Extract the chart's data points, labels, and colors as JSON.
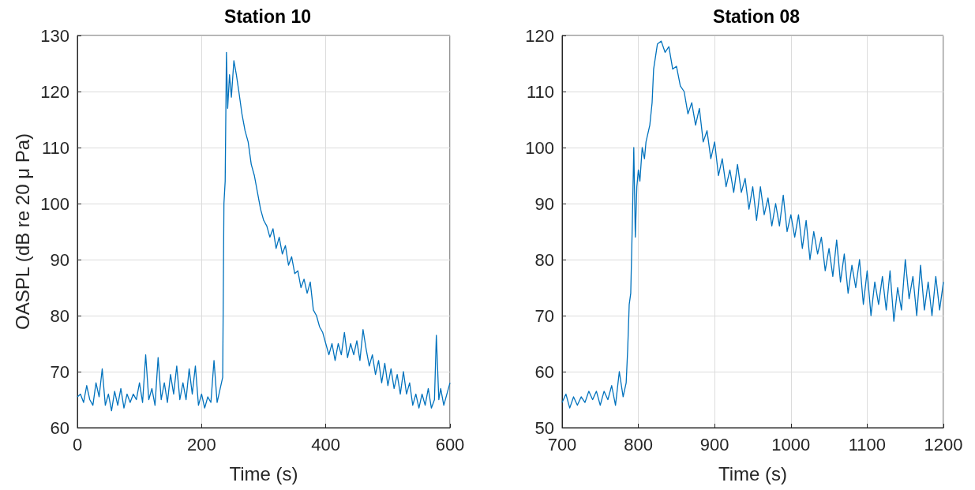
{
  "chart_data": [
    {
      "type": "line",
      "title": "Station 10",
      "xlabel": "Time (s)",
      "ylabel": "OASPL (dB re 20 μ Pa)",
      "xlim": [
        0,
        600
      ],
      "xticks": [
        0,
        200,
        400,
        600
      ],
      "ylim": [
        60,
        130
      ],
      "yticks": [
        60,
        70,
        80,
        90,
        100,
        110,
        120,
        130
      ],
      "grid": true,
      "series": [
        {
          "color": "#0072bd",
          "x": [
            0,
            5,
            10,
            15,
            20,
            25,
            30,
            35,
            40,
            45,
            50,
            55,
            60,
            65,
            70,
            75,
            80,
            85,
            90,
            95,
            100,
            105,
            110,
            115,
            120,
            125,
            130,
            135,
            140,
            145,
            150,
            155,
            160,
            165,
            170,
            175,
            180,
            185,
            190,
            195,
            200,
            205,
            210,
            215,
            220,
            225,
            230,
            234,
            236,
            238,
            240,
            242,
            245,
            248,
            252,
            256,
            260,
            265,
            270,
            275,
            280,
            285,
            290,
            295,
            300,
            305,
            310,
            315,
            320,
            325,
            330,
            335,
            340,
            345,
            350,
            355,
            360,
            365,
            370,
            375,
            380,
            385,
            390,
            395,
            400,
            405,
            410,
            415,
            420,
            425,
            430,
            435,
            440,
            445,
            450,
            455,
            460,
            465,
            470,
            475,
            480,
            485,
            490,
            495,
            500,
            505,
            510,
            515,
            520,
            525,
            530,
            535,
            540,
            545,
            550,
            555,
            560,
            565,
            570,
            575,
            578,
            582,
            585,
            590,
            595,
            600
          ],
          "values": [
            65.5,
            66,
            64.5,
            67.5,
            65,
            64,
            68,
            65.5,
            70.5,
            64,
            66,
            63,
            66.5,
            64,
            67,
            63.5,
            66,
            64.5,
            66,
            65,
            68,
            64.5,
            73,
            65,
            67,
            64,
            72.5,
            65,
            68,
            64.5,
            69.5,
            66,
            71,
            65,
            68,
            65,
            70.5,
            66,
            71,
            64,
            66,
            63.5,
            65.5,
            64.5,
            72,
            64.5,
            67,
            69,
            100,
            104,
            127,
            117,
            123,
            119,
            125.5,
            123,
            120,
            116,
            113,
            111,
            107,
            105,
            102,
            99,
            97,
            96,
            94,
            95.5,
            92,
            94,
            91,
            92.5,
            89,
            90.5,
            87.5,
            88,
            85,
            86.5,
            84,
            86,
            81,
            80,
            78,
            77,
            75,
            73,
            75,
            72,
            75,
            73,
            77,
            72.5,
            75,
            73,
            75.5,
            72,
            77.5,
            74,
            71,
            73,
            69.5,
            72,
            68,
            71.5,
            67.5,
            70.5,
            67,
            69.5,
            66,
            70,
            66,
            68,
            64,
            66,
            63.5,
            66,
            64,
            67,
            63.5,
            65,
            76.5,
            65,
            67,
            64,
            66,
            68
          ]
        }
      ]
    },
    {
      "type": "line",
      "title": "Station 08",
      "xlabel": "Time (s)",
      "xlim": [
        700,
        1200
      ],
      "xticks": [
        700,
        800,
        900,
        1000,
        1100,
        1200
      ],
      "ylim": [
        50,
        120
      ],
      "yticks": [
        50,
        60,
        70,
        80,
        90,
        100,
        110,
        120
      ],
      "grid": true,
      "series": [
        {
          "color": "#0072bd",
          "x": [
            700,
            705,
            710,
            715,
            720,
            725,
            730,
            735,
            740,
            745,
            750,
            755,
            760,
            765,
            770,
            775,
            780,
            784,
            786,
            788,
            790,
            792,
            794,
            796,
            798,
            800,
            802,
            805,
            808,
            810,
            815,
            818,
            820,
            825,
            830,
            835,
            840,
            845,
            850,
            855,
            860,
            865,
            870,
            875,
            880,
            885,
            890,
            895,
            900,
            905,
            910,
            915,
            920,
            925,
            930,
            935,
            940,
            945,
            950,
            955,
            960,
            965,
            970,
            975,
            980,
            985,
            990,
            995,
            1000,
            1005,
            1010,
            1015,
            1020,
            1025,
            1030,
            1035,
            1040,
            1045,
            1050,
            1055,
            1060,
            1065,
            1070,
            1075,
            1080,
            1085,
            1090,
            1095,
            1100,
            1105,
            1110,
            1115,
            1120,
            1125,
            1130,
            1135,
            1140,
            1145,
            1150,
            1155,
            1160,
            1165,
            1170,
            1175,
            1180,
            1185,
            1190,
            1195,
            1200
          ],
          "values": [
            54.5,
            56,
            53.5,
            55.5,
            54,
            55.5,
            54.5,
            56.5,
            55,
            56.5,
            54,
            56.5,
            55,
            57.5,
            54,
            60,
            55.5,
            58,
            64,
            72,
            74,
            86,
            100,
            84,
            93,
            96,
            94,
            100,
            98,
            101,
            104,
            108,
            114,
            118.5,
            119,
            117,
            118,
            114,
            114.5,
            111,
            110,
            106,
            108,
            104,
            107,
            101,
            103,
            98,
            101,
            95,
            98,
            93,
            96,
            92,
            97,
            92,
            94.5,
            89,
            93,
            87,
            93,
            88,
            91,
            86,
            90,
            86,
            91.5,
            85,
            88,
            84,
            88,
            82,
            87,
            80,
            85,
            81,
            84,
            78,
            82,
            77,
            83.5,
            76,
            81,
            74,
            79,
            75,
            80,
            72,
            78,
            70,
            76,
            72,
            77,
            71,
            78,
            69,
            75,
            71,
            80,
            73,
            77,
            70,
            79,
            71,
            76,
            70,
            77,
            71,
            76
          ]
        }
      ]
    }
  ]
}
